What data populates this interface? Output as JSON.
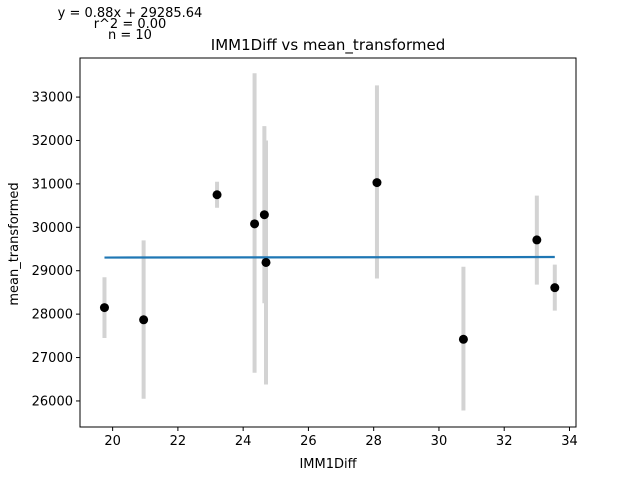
{
  "chart_data": {
    "type": "scatter",
    "title": "IMM1Diff vs mean_transformed",
    "xlabel": "IMM1Diff",
    "ylabel": "mean_transformed",
    "xlim": [
      19.0,
      34.2
    ],
    "ylim": [
      25400,
      33900
    ],
    "xticks": [
      20,
      22,
      24,
      26,
      28,
      30,
      32,
      34
    ],
    "yticks": [
      26000,
      27000,
      28000,
      29000,
      30000,
      31000,
      32000,
      33000
    ],
    "grid": false,
    "annotations": [
      "y = 0.88x + 29285.64",
      "r^2 = 0.00",
      "n = 10"
    ],
    "points": [
      {
        "x": 19.75,
        "y": 28150,
        "err_low": 27450,
        "err_high": 28850
      },
      {
        "x": 20.95,
        "y": 27870,
        "err_low": 26050,
        "err_high": 29700
      },
      {
        "x": 23.2,
        "y": 30750,
        "err_low": 30450,
        "err_high": 31050
      },
      {
        "x": 24.35,
        "y": 30080,
        "err_low": 26650,
        "err_high": 33550
      },
      {
        "x": 24.65,
        "y": 30290,
        "err_low": 28250,
        "err_high": 32330
      },
      {
        "x": 24.7,
        "y": 29190,
        "err_low": 26380,
        "err_high": 32000
      },
      {
        "x": 28.1,
        "y": 31030,
        "err_low": 28820,
        "err_high": 33270
      },
      {
        "x": 30.75,
        "y": 27420,
        "err_low": 25780,
        "err_high": 29090
      },
      {
        "x": 33.0,
        "y": 29710,
        "err_low": 28680,
        "err_high": 30730
      },
      {
        "x": 33.55,
        "y": 28610,
        "err_low": 28080,
        "err_high": 29140
      }
    ],
    "fit_line": {
      "slope": 0.88,
      "intercept": 29285.64,
      "x_range": [
        19.75,
        33.55
      ]
    },
    "colors": {
      "points": "#000000",
      "errorbars": "#d3d3d3",
      "fit": "#1f77b4"
    }
  }
}
